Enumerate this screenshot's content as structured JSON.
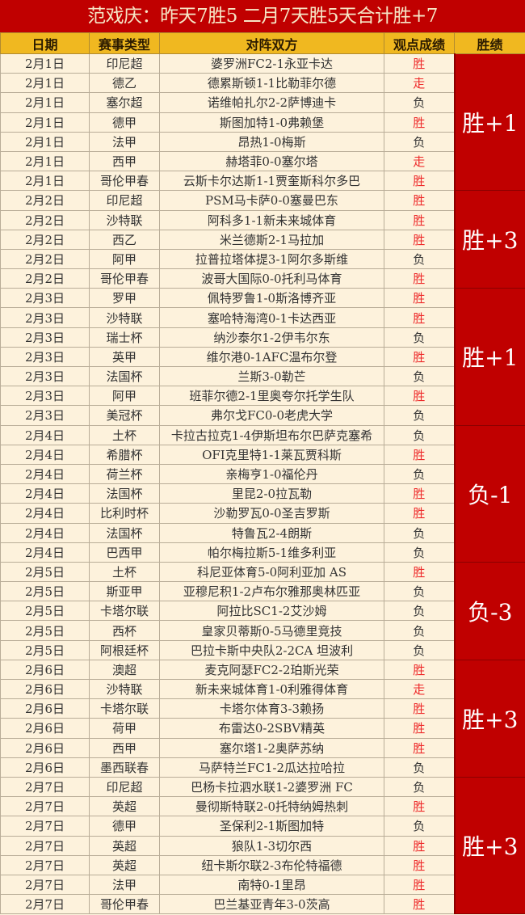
{
  "title": "范戏庆：昨天7胜5 二月7天胜5天合计胜+7",
  "headers": [
    "日期",
    "赛事类型",
    "对阵双方",
    "观点成绩",
    "胜绩"
  ],
  "colors": {
    "title_bg": "#c00000",
    "header_bg": "#f0b820",
    "row_bg": "#fdf2dc",
    "win_text": "#ee2a2a",
    "record_bg": "#c00000"
  },
  "groups": [
    {
      "date": "2月1日",
      "record": "胜+1",
      "rows": [
        {
          "league": "印尼超",
          "match": "婆罗洲FC2-1永亚卡达",
          "result": "胜"
        },
        {
          "league": "德乙",
          "match": "德累斯顿1-1比勒菲尔德",
          "result": "走"
        },
        {
          "league": "塞尔超",
          "match": "诺维帕扎尔2-2萨博迪卡",
          "result": "负"
        },
        {
          "league": "德甲",
          "match": "斯图加特1-0弗赖堡",
          "result": "胜"
        },
        {
          "league": "法甲",
          "match": "昂热1-0梅斯",
          "result": "负"
        },
        {
          "league": "西甲",
          "match": "赫塔菲0-0塞尔塔",
          "result": "走"
        },
        {
          "league": "哥伦甲春",
          "match": "云斯卡尔达斯1-1贾奎斯科尔多巴",
          "result": "胜"
        }
      ]
    },
    {
      "date": "2月2日",
      "record": "胜+3",
      "rows": [
        {
          "league": "印尼超",
          "match": "PSM马卡萨0-0塞曼巴东",
          "result": "胜"
        },
        {
          "league": "沙特联",
          "match": "阿科多1-1新未来城体育",
          "result": "胜"
        },
        {
          "league": "西乙",
          "match": "米兰德斯2-1马拉加",
          "result": "胜"
        },
        {
          "league": "阿甲",
          "match": "拉普拉塔体提3-1阿尔多斯维",
          "result": "负"
        },
        {
          "league": "哥伦甲春",
          "match": "波哥大国际0-0托利马体育",
          "result": "胜"
        }
      ]
    },
    {
      "date": "2月3日",
      "record": "胜+1",
      "rows": [
        {
          "league": "罗甲",
          "match": "佩特罗鲁1-0斯洛博齐亚",
          "result": "胜"
        },
        {
          "league": "沙特联",
          "match": "塞哈特海湾0-1卡达西亚",
          "result": "胜"
        },
        {
          "league": "瑞士杯",
          "match": "纳沙泰尔1-2伊韦尔东",
          "result": "负"
        },
        {
          "league": "英甲",
          "match": "维尔港0-1AFC温布尔登",
          "result": "胜"
        },
        {
          "league": "法国杯",
          "match": "兰斯3-0勒芒",
          "result": "负"
        },
        {
          "league": "阿甲",
          "match": "班菲尔德2-1里奥夸尔托学生队",
          "result": "胜"
        },
        {
          "league": "美冠杯",
          "match": "弗尔戈FC0-0老虎大学",
          "result": "负"
        }
      ]
    },
    {
      "date": "2月4日",
      "record": "负-1",
      "rows": [
        {
          "league": "土杯",
          "match": "卡拉古拉克1-4伊斯坦布尔巴萨克塞希",
          "result": "负"
        },
        {
          "league": "希腊杯",
          "match": "OFI克里特1-1莱瓦贾科斯",
          "result": "胜"
        },
        {
          "league": "荷兰杯",
          "match": "亲梅亨1-0福伦丹",
          "result": "负"
        },
        {
          "league": "法国杯",
          "match": "里昆2-0拉瓦勒",
          "result": "胜"
        },
        {
          "league": "比利时杯",
          "match": "沙勒罗瓦0-0圣吉罗斯",
          "result": "胜"
        },
        {
          "league": "法国杯",
          "match": "特鲁瓦2-4朗斯",
          "result": "负"
        },
        {
          "league": "巴西甲",
          "match": "帕尔梅拉斯5-1维多利亚",
          "result": "负"
        }
      ]
    },
    {
      "date": "2月5日",
      "record": "负-3",
      "rows": [
        {
          "league": "土杯",
          "match": "科尼亚体育5-0阿利亚加 AS",
          "result": "胜"
        },
        {
          "league": "斯亚甲",
          "match": "亚穆尼积1-2卢布尔雅那奥林匹亚",
          "result": "负"
        },
        {
          "league": "卡塔尔联",
          "match": "阿拉比SC1-2艾沙姆",
          "result": "负"
        },
        {
          "league": "西杯",
          "match": "皇家贝蒂斯0-5马德里竞技",
          "result": "负"
        },
        {
          "league": "阿根廷杯",
          "match": "巴拉卡斯中央队2-2CA 坦波利",
          "result": "负"
        }
      ]
    },
    {
      "date": "2月6日",
      "record": "胜+3",
      "rows": [
        {
          "league": "澳超",
          "match": "麦克阿瑟FC2-2珀斯光荣",
          "result": "胜"
        },
        {
          "league": "沙特联",
          "match": "新未来城体育1-0利雅得体育",
          "result": "走"
        },
        {
          "league": "卡塔尔联",
          "match": "卡塔尔体育3-3赖扬",
          "result": "胜"
        },
        {
          "league": "荷甲",
          "match": "布雷达0-2SBV精英",
          "result": "胜"
        },
        {
          "league": "西甲",
          "match": "塞尔塔1-2奥萨苏纳",
          "result": "胜"
        },
        {
          "league": "墨西联春",
          "match": "马萨特兰FC1-2瓜达拉哈拉",
          "result": "负"
        }
      ]
    },
    {
      "date": "2月7日",
      "record": "胜+3",
      "rows": [
        {
          "league": "印尼超",
          "match": "巴杨卡拉泗水联1-2婆罗洲 FC",
          "result": "负"
        },
        {
          "league": "英超",
          "match": "曼彻斯特联2-0托特纳姆热刺",
          "result": "胜"
        },
        {
          "league": "德甲",
          "match": "圣保利2-1斯图加特",
          "result": "负"
        },
        {
          "league": "英超",
          "match": "狼队1-3切尔西",
          "result": "胜"
        },
        {
          "league": "英超",
          "match": "纽卡斯尔联2-3布伦特福德",
          "result": "胜"
        },
        {
          "league": "法甲",
          "match": "南特0-1里昂",
          "result": "胜"
        },
        {
          "league": "哥伦甲春",
          "match": "巴兰基亚青年3-0茨高",
          "result": "胜"
        }
      ]
    }
  ]
}
